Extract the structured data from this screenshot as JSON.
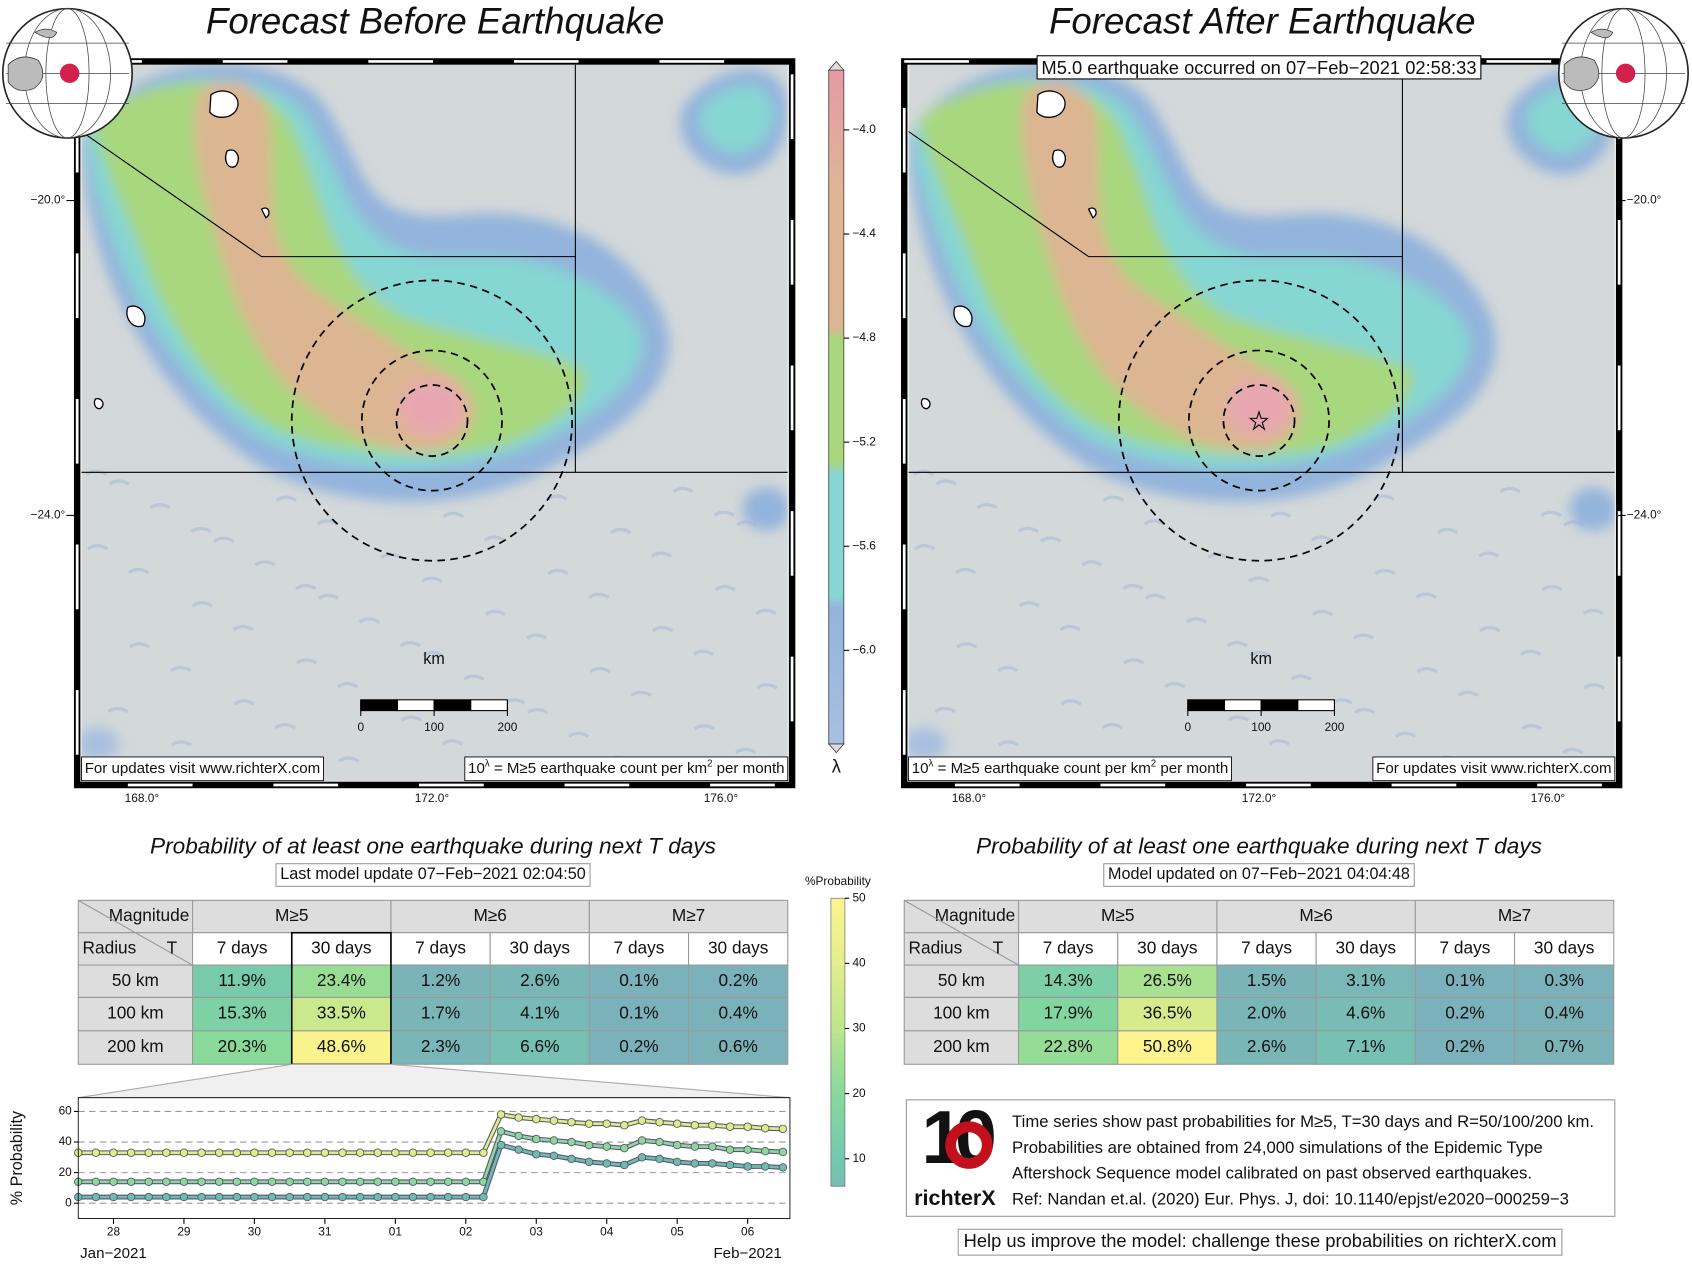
{
  "maps": [
    {
      "title": "Forecast Before Earthquake",
      "lat_labels": [
        "−20.0°",
        "−24.0°"
      ],
      "lon_labels": [
        "168.0°",
        "172.0°",
        "176.0°"
      ],
      "scale_bar": {
        "label": "km",
        "ticks": [
          0,
          100,
          200
        ]
      },
      "credit": "For updates visit www.richterX.com",
      "units": {
        "base": "10",
        "exp": "λ",
        "text": " = M≥5 earthquake count per km",
        "sup": "2",
        "tail": " per month"
      }
    },
    {
      "title": "Forecast After Earthquake",
      "annotation": "M5.0 earthquake occurred on 07−Feb−2021 02:58:33",
      "lat_labels": [
        "−20.0°",
        "−24.0°"
      ],
      "lon_labels": [
        "168.0°",
        "172.0°",
        "176.0°"
      ],
      "scale_bar": {
        "label": "km",
        "ticks": [
          0,
          100,
          200
        ]
      },
      "credit": "For updates visit www.richterX.com",
      "units": {
        "base": "10",
        "exp": "λ",
        "text": " = M≥5 earthquake count per km",
        "sup": "2",
        "tail": " per month"
      }
    }
  ],
  "rate_colorbar": {
    "label": "λ",
    "lim": [
      -6.36,
      -3.77
    ],
    "ticks": [
      {
        "value": -4.0,
        "label": "−4.0"
      },
      {
        "value": -4.4,
        "label": "−4.4"
      },
      {
        "value": -4.8,
        "label": "−4.8"
      },
      {
        "value": -5.2,
        "label": "−5.2"
      },
      {
        "value": -5.6,
        "label": "−5.6"
      },
      {
        "value": -6.0,
        "label": "−6.0"
      }
    ]
  },
  "probability_colorbar": {
    "label": "%Probability",
    "lim": [
      5.8,
      50
    ],
    "ticks": [
      10,
      20,
      30,
      40,
      50
    ]
  },
  "tables": [
    {
      "title": "Probability of at least one earthquake during next T days",
      "subtitle": "Last model update 07−Feb−2021 02:04:50",
      "corner_top": "Magnitude",
      "corner_left": "Radius",
      "corner_right": "T",
      "groups": [
        "M≥5",
        "M≥6",
        "M≥7"
      ],
      "periods": [
        "7 days",
        "30 days",
        "7 days",
        "30 days",
        "7 days",
        "30 days"
      ],
      "rows": [
        {
          "label": "50 km",
          "cells": [
            "11.9%",
            "23.4%",
            "1.2%",
            "2.6%",
            "0.1%",
            "0.2%"
          ]
        },
        {
          "label": "100 km",
          "cells": [
            "15.3%",
            "33.5%",
            "1.7%",
            "4.1%",
            "0.1%",
            "0.4%"
          ]
        },
        {
          "label": "200 km",
          "cells": [
            "20.3%",
            "48.6%",
            "2.3%",
            "6.6%",
            "0.2%",
            "0.6%"
          ]
        }
      ]
    },
    {
      "title": "Probability of at least one earthquake during next T days",
      "subtitle": "Model updated on 07−Feb−2021 04:04:48",
      "corner_top": "Magnitude",
      "corner_left": "Radius",
      "corner_right": "T",
      "groups": [
        "M≥5",
        "M≥6",
        "M≥7"
      ],
      "periods": [
        "7 days",
        "30 days",
        "7 days",
        "30 days",
        "7 days",
        "30 days"
      ],
      "rows": [
        {
          "label": "50 km",
          "cells": [
            "14.3%",
            "26.5%",
            "1.5%",
            "3.1%",
            "0.1%",
            "0.3%"
          ]
        },
        {
          "label": "100 km",
          "cells": [
            "17.9%",
            "36.5%",
            "2.0%",
            "4.6%",
            "0.2%",
            "0.4%"
          ]
        },
        {
          "label": "200 km",
          "cells": [
            "22.8%",
            "50.8%",
            "2.6%",
            "7.1%",
            "0.2%",
            "0.7%"
          ]
        }
      ]
    }
  ],
  "chart_data": {
    "type": "line",
    "y_label": "% Probability",
    "x": [
      27.5,
      27.75,
      28,
      28.25,
      28.5,
      28.75,
      29,
      29.25,
      29.5,
      29.75,
      30,
      30.25,
      30.5,
      30.75,
      31,
      31.25,
      31.5,
      31.75,
      32,
      32.25,
      32.5,
      32.75,
      33,
      33.25,
      33.5,
      33.75,
      34,
      34.25,
      34.5,
      34.75,
      35,
      35.25,
      35.5,
      35.75,
      36,
      36.25,
      36.5,
      36.75,
      37,
      37.25,
      37.5
    ],
    "xlim": [
      27.5,
      37.6
    ],
    "ylim": [
      -10,
      69
    ],
    "xticks": [
      28,
      29,
      30,
      31,
      {
        "value": 32,
        "label": "01"
      },
      {
        "value": 33,
        "label": "02"
      },
      {
        "value": 34,
        "label": "03"
      },
      {
        "value": 35,
        "label": "04"
      },
      {
        "value": 36,
        "label": "05"
      },
      {
        "value": 37,
        "label": "06"
      }
    ],
    "yticks": [
      0,
      20,
      40,
      60
    ],
    "x_period_labels": [
      "Jan−2021",
      "Feb−2021"
    ],
    "grid": true,
    "series": [
      {
        "color": "#dcee86",
        "values": [
          33,
          33,
          33,
          33,
          33,
          33,
          33,
          33,
          33,
          33,
          33,
          33,
          33,
          33,
          33,
          33,
          33,
          33,
          33,
          33,
          33,
          33,
          33,
          33,
          58,
          56,
          55,
          54,
          53,
          52,
          52,
          51,
          54,
          53,
          52,
          51,
          51,
          50,
          50,
          49,
          48.6
        ]
      },
      {
        "color": "#8fd79c",
        "values": [
          14,
          14,
          14,
          14,
          14,
          14,
          14,
          14,
          14,
          14,
          14,
          14,
          14,
          14,
          14,
          14,
          14,
          14,
          14,
          14,
          14,
          14,
          14,
          14,
          47,
          44,
          42,
          41,
          40,
          38,
          37,
          36,
          41,
          40,
          38,
          37,
          37,
          35,
          35,
          34,
          33.5
        ]
      },
      {
        "color": "#6fbcae",
        "values": [
          4,
          4,
          4,
          4,
          4,
          4,
          4,
          4,
          4,
          4,
          4,
          4,
          4,
          4,
          4,
          4,
          4,
          4,
          4,
          4,
          4,
          4,
          4,
          4,
          38,
          35,
          32,
          31,
          29,
          27,
          26,
          25,
          30,
          29,
          27,
          26,
          26,
          25,
          24,
          24,
          23.4
        ]
      }
    ]
  },
  "info": {
    "logo_mark": "10",
    "logo_text": "richterX",
    "lines": [
      "Time series show past probabilities for M≥5, T=30 days and R=50/100/200 km.",
      "Probabilities are obtained from 24,000 simulations of the Epidemic Type",
      "Aftershock Sequence model calibrated on past observed earthquakes.",
      "Ref: Nandan et.al. (2020) Eur. Phys. J, doi: 10.1140/epjst/e2020−000259−3"
    ],
    "footer": "Help us improve the model: challenge these probabilities on richterX.com"
  }
}
